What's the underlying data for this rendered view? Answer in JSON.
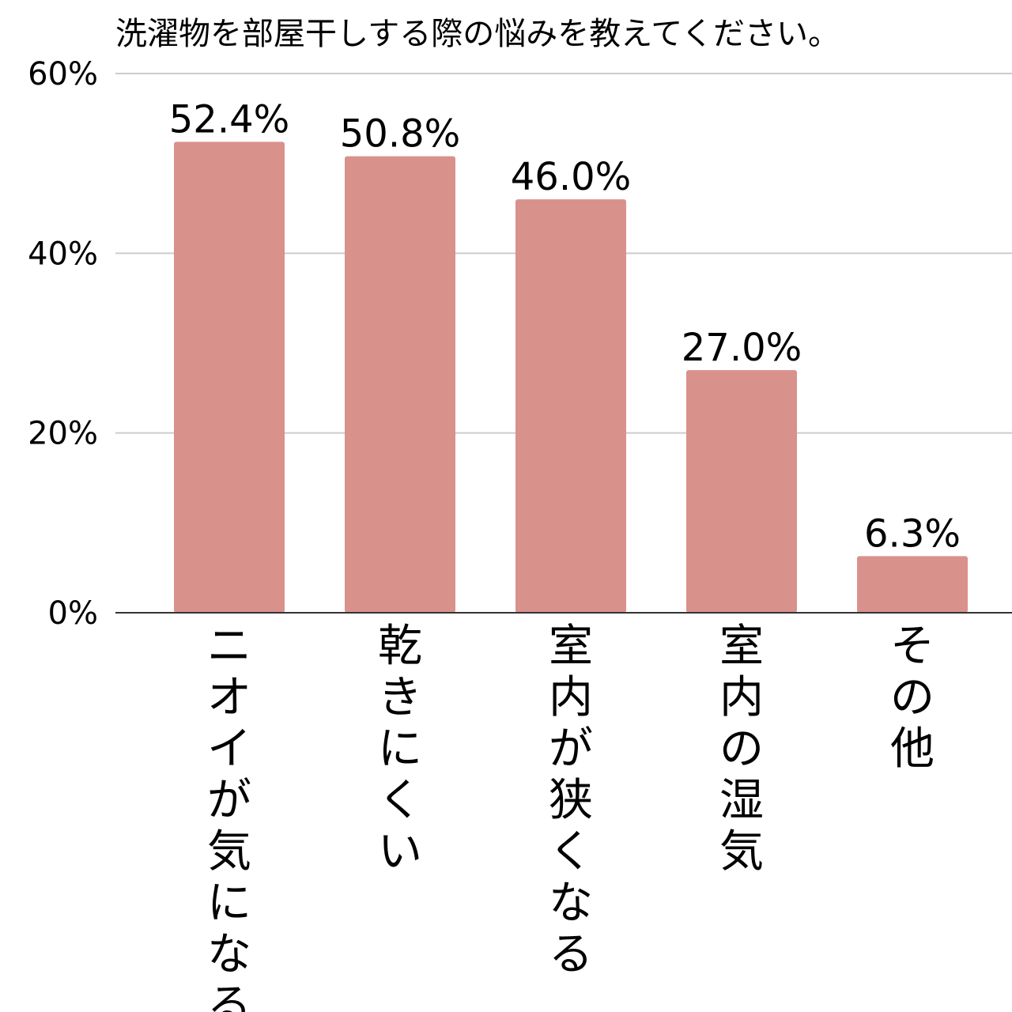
{
  "chart_data": {
    "type": "bar",
    "title": "洗濯物を部屋干しする際の悩みを教えてください。",
    "categories": [
      "ニオイが気になる",
      "乾きにくい",
      "室内が狭くなる",
      "室内の湿気",
      "その他"
    ],
    "values": [
      52.4,
      50.8,
      46.0,
      27.0,
      6.3
    ],
    "data_labels": [
      "52.4%",
      "50.8%",
      "46.0%",
      "27.0%",
      "6.3%"
    ],
    "y_ticks": [
      0,
      20,
      40,
      60
    ],
    "y_tick_labels": [
      "0%",
      "20%",
      "40%",
      "60%"
    ],
    "ylim": [
      0,
      60
    ],
    "xlabel": "",
    "ylabel": "",
    "grid": true,
    "bar_color": "#d9918c",
    "grid_color": "#cccccc",
    "axis_color": "#333333"
  }
}
